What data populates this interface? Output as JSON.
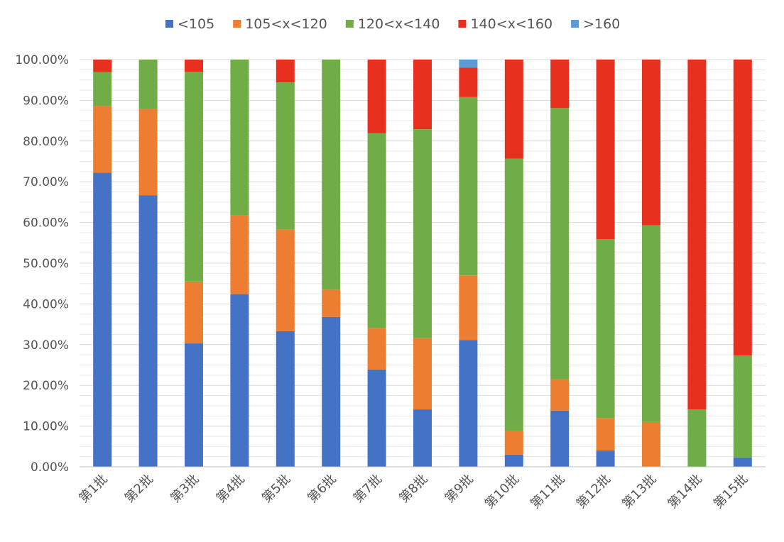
{
  "chart_data": {
    "type": "bar",
    "stacked": true,
    "normalized": true,
    "categories": [
      "第1批",
      "第2批",
      "第3批",
      "第4批",
      "第5批",
      "第6批",
      "第7批",
      "第8批",
      "第9批",
      "第10批",
      "第11批",
      "第12批",
      "第13批",
      "第14批",
      "第15批"
    ],
    "series": [
      {
        "name": "<105",
        "color": "#4472c4",
        "values": [
          72.2,
          66.7,
          30.3,
          42.4,
          33.3,
          36.8,
          23.9,
          14.1,
          31.1,
          3.0,
          13.8,
          4.0,
          0,
          0,
          2.3
        ]
      },
      {
        "name": "105<x<120",
        "color": "#ed7d31",
        "values": [
          16.4,
          21.2,
          15.2,
          19.3,
          25.0,
          6.7,
          10.2,
          17.5,
          15.9,
          5.8,
          7.7,
          8.0,
          11.0,
          0,
          0
        ]
      },
      {
        "name": "120<x<140",
        "color": "#70ad47",
        "values": [
          8.3,
          12.1,
          51.5,
          38.3,
          36.1,
          56.5,
          47.8,
          51.3,
          43.8,
          66.9,
          66.6,
          43.9,
          48.3,
          14.1,
          25.0
        ]
      },
      {
        "name": "140<x<160",
        "color": "#e8301f",
        "values": [
          3.1,
          0,
          3.0,
          0,
          5.6,
          0,
          18.1,
          17.1,
          7.2,
          24.3,
          11.9,
          44.1,
          40.7,
          85.9,
          72.7
        ]
      },
      {
        "name": ">160",
        "color": "#5b9bd5",
        "values": [
          0,
          0,
          0,
          0,
          0,
          0,
          0,
          0,
          2.0,
          0,
          0,
          0,
          0,
          0,
          0
        ]
      }
    ],
    "ylim": [
      0,
      100
    ],
    "yticks": [
      "0.00%",
      "10.00%",
      "20.00%",
      "30.00%",
      "40.00%",
      "50.00%",
      "60.00%",
      "70.00%",
      "80.00%",
      "90.00%",
      "100.00%"
    ],
    "grid": true,
    "legend": "top",
    "title": "",
    "xlabel": "",
    "ylabel": ""
  }
}
